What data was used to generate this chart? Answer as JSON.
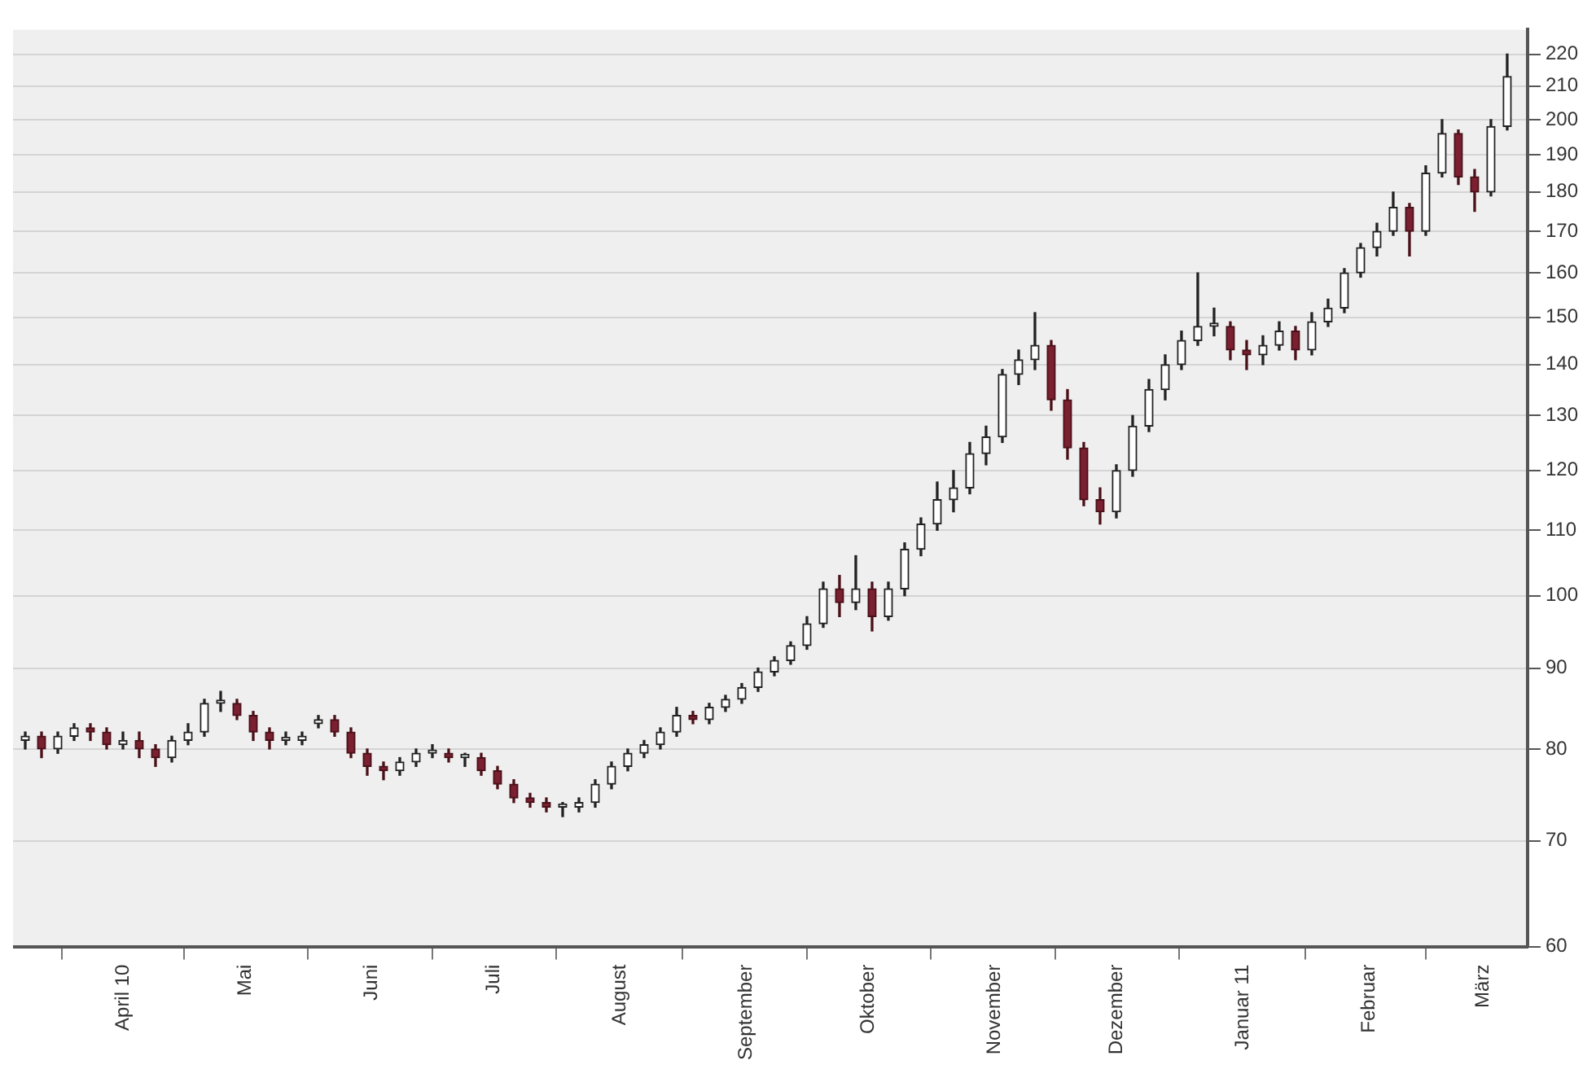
{
  "chart_data": {
    "type": "candlestick",
    "x": [
      "2010-03-08",
      "2010-03-12",
      "2010-03-16",
      "2010-03-20",
      "2010-03-24",
      "2010-03-28",
      "2010-04-01",
      "2010-04-05",
      "2010-04-09",
      "2010-04-13",
      "2010-04-17",
      "2010-04-21",
      "2010-04-25",
      "2010-04-29",
      "2010-05-03",
      "2010-05-07",
      "2010-05-11",
      "2010-05-15",
      "2010-05-19",
      "2010-05-23",
      "2010-05-27",
      "2010-05-31",
      "2010-06-04",
      "2010-06-08",
      "2010-06-12",
      "2010-06-16",
      "2010-06-20",
      "2010-06-24",
      "2010-06-28",
      "2010-07-02",
      "2010-07-06",
      "2010-07-10",
      "2010-07-14",
      "2010-07-18",
      "2010-07-22",
      "2010-07-26",
      "2010-07-30",
      "2010-08-03",
      "2010-08-07",
      "2010-08-11",
      "2010-08-15",
      "2010-08-19",
      "2010-08-23",
      "2010-08-27",
      "2010-08-31",
      "2010-09-04",
      "2010-09-08",
      "2010-09-12",
      "2010-09-16",
      "2010-09-20",
      "2010-09-24",
      "2010-09-28",
      "2010-10-02",
      "2010-10-06",
      "2010-10-10",
      "2010-10-14",
      "2010-10-18",
      "2010-10-22",
      "2010-10-26",
      "2010-10-30",
      "2010-11-03",
      "2010-11-07",
      "2010-11-11",
      "2010-11-15",
      "2010-11-19",
      "2010-11-23",
      "2010-11-27",
      "2010-12-01",
      "2010-12-05",
      "2010-12-09",
      "2010-12-13",
      "2010-12-17",
      "2010-12-21",
      "2010-12-25",
      "2010-12-29",
      "2011-01-02",
      "2011-01-06",
      "2011-01-10",
      "2011-01-14",
      "2011-01-18",
      "2011-01-22",
      "2011-01-26",
      "2011-01-30",
      "2011-02-03",
      "2011-02-07",
      "2011-02-11",
      "2011-02-15",
      "2011-02-19",
      "2011-02-23",
      "2011-02-27",
      "2011-03-03",
      "2011-03-07"
    ],
    "ohlc": [
      [
        81,
        82,
        80,
        81.5
      ],
      [
        81.5,
        82,
        79,
        80
      ],
      [
        80,
        82,
        79.5,
        81.5
      ],
      [
        81.5,
        83,
        81,
        82.5
      ],
      [
        82.5,
        83,
        81,
        82
      ],
      [
        82,
        82.5,
        80,
        80.5
      ],
      [
        80.5,
        82,
        80,
        81
      ],
      [
        81,
        82,
        79,
        80
      ],
      [
        80,
        80.5,
        78,
        79
      ],
      [
        79,
        81.5,
        78.5,
        81
      ],
      [
        81,
        83,
        80.5,
        82
      ],
      [
        82,
        86,
        81.5,
        85.5
      ],
      [
        85.5,
        87,
        84.5,
        85.5
      ],
      [
        85.5,
        86,
        83.5,
        84
      ],
      [
        84,
        84.5,
        81,
        82
      ],
      [
        82,
        82.5,
        80,
        81
      ],
      [
        81,
        82,
        80.5,
        81
      ],
      [
        81,
        82,
        80.5,
        81.5
      ],
      [
        83,
        84,
        82.5,
        83.5
      ],
      [
        83.5,
        84,
        81.5,
        82
      ],
      [
        82,
        82.5,
        79,
        79.5
      ],
      [
        79.5,
        80,
        77,
        78
      ],
      [
        78,
        78.5,
        76.5,
        77.5
      ],
      [
        77.5,
        79,
        77,
        78.5
      ],
      [
        78.5,
        80,
        78,
        79.5
      ],
      [
        79.5,
        80.5,
        79,
        79.5
      ],
      [
        79.5,
        80,
        78.5,
        79
      ],
      [
        79,
        79.5,
        78,
        79
      ],
      [
        79,
        79.5,
        77,
        77.5
      ],
      [
        77.5,
        78,
        75.5,
        76
      ],
      [
        76,
        76.5,
        74,
        74.5
      ],
      [
        74.5,
        75,
        73.5,
        74
      ],
      [
        74,
        74.5,
        73,
        73.5
      ],
      [
        73.5,
        74,
        72.5,
        73.5
      ],
      [
        73.5,
        74.5,
        73,
        74
      ],
      [
        74,
        76.5,
        73.5,
        76
      ],
      [
        76,
        78.5,
        75.5,
        78
      ],
      [
        78,
        80,
        77.5,
        79.5
      ],
      [
        79.5,
        81,
        79,
        80.5
      ],
      [
        80.5,
        82.5,
        80,
        82
      ],
      [
        82,
        85,
        81.5,
        84
      ],
      [
        84,
        84.5,
        83,
        83.5
      ],
      [
        83.5,
        85.5,
        83,
        85
      ],
      [
        85,
        86.5,
        84.5,
        86
      ],
      [
        86,
        88,
        85.5,
        87.5
      ],
      [
        87.5,
        90,
        87,
        89.5
      ],
      [
        89.5,
        91.5,
        89,
        91
      ],
      [
        91,
        93.5,
        90.5,
        93
      ],
      [
        93,
        97,
        92.5,
        96
      ],
      [
        96,
        102,
        95.5,
        101
      ],
      [
        101,
        103,
        97,
        99
      ],
      [
        99,
        106,
        98,
        101
      ],
      [
        101,
        102,
        95,
        97
      ],
      [
        97,
        102,
        96.5,
        101
      ],
      [
        101,
        108,
        100,
        107
      ],
      [
        107,
        112,
        106,
        111
      ],
      [
        111,
        118,
        110,
        115
      ],
      [
        115,
        120,
        113,
        117
      ],
      [
        117,
        125,
        116,
        123
      ],
      [
        123,
        128,
        121,
        126
      ],
      [
        126,
        139,
        125,
        138
      ],
      [
        138,
        143,
        136,
        141
      ],
      [
        141,
        151,
        139,
        144
      ],
      [
        144,
        145,
        131,
        133
      ],
      [
        133,
        135,
        122,
        124
      ],
      [
        124,
        125,
        114,
        115
      ],
      [
        115,
        117,
        111,
        113
      ],
      [
        113,
        121,
        112,
        120
      ],
      [
        120,
        130,
        119,
        128
      ],
      [
        128,
        137,
        127,
        135
      ],
      [
        135,
        142,
        133,
        140
      ],
      [
        140,
        147,
        139,
        145
      ],
      [
        145,
        160,
        144,
        148
      ],
      [
        148,
        152,
        146,
        148
      ],
      [
        148,
        149,
        141,
        143
      ],
      [
        143,
        145,
        139,
        142
      ],
      [
        142,
        146,
        140,
        144
      ],
      [
        144,
        149,
        143,
        147
      ],
      [
        147,
        148,
        141,
        143
      ],
      [
        143,
        151,
        142,
        149
      ],
      [
        149,
        154,
        148,
        152
      ],
      [
        152,
        161,
        151,
        160
      ],
      [
        160,
        167,
        159,
        166
      ],
      [
        166,
        172,
        164,
        170
      ],
      [
        170,
        180,
        169,
        176
      ],
      [
        176,
        177,
        164,
        170
      ],
      [
        170,
        187,
        169,
        185
      ],
      [
        185,
        200,
        184,
        196
      ],
      [
        196,
        197,
        182,
        184
      ],
      [
        184,
        186,
        175,
        180
      ],
      [
        180,
        200,
        179,
        198
      ],
      [
        198,
        220,
        197,
        213
      ]
    ],
    "xlim": [
      "2010-03-05",
      "2011-03-12"
    ],
    "xticks": [
      {
        "value": "2010-04-01",
        "label": "April 10"
      },
      {
        "value": "2010-05-01",
        "label": "Mai"
      },
      {
        "value": "2010-06-01",
        "label": "Juni"
      },
      {
        "value": "2010-07-01",
        "label": "Juli"
      },
      {
        "value": "2010-08-01",
        "label": "August"
      },
      {
        "value": "2010-09-01",
        "label": "September"
      },
      {
        "value": "2010-10-01",
        "label": "Oktober"
      },
      {
        "value": "2010-11-01",
        "label": "November"
      },
      {
        "value": "2010-12-01",
        "label": "Dezember"
      },
      {
        "value": "2011-01-01",
        "label": "Januar 11"
      },
      {
        "value": "2011-02-01",
        "label": "Februar"
      },
      {
        "value": "2011-03-01",
        "label": "März"
      }
    ],
    "ylim": [
      60,
      228
    ],
    "yticks": [
      60,
      70,
      80,
      90,
      100,
      110,
      120,
      130,
      140,
      150,
      160,
      170,
      180,
      190,
      200,
      210,
      220
    ],
    "log": "y",
    "grid": "y"
  }
}
